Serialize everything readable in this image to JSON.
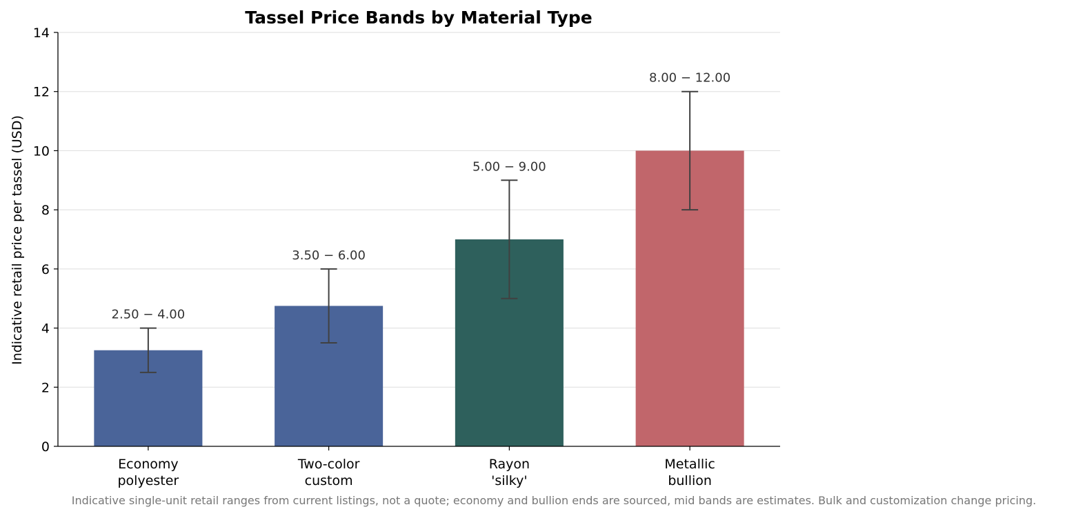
{
  "chart_data": {
    "type": "bar",
    "title": "Tassel Price Bands by Material Type",
    "xlabel": "",
    "ylabel": "Indicative retail price per tassel (USD)",
    "ylim": [
      0,
      14
    ],
    "yticks": [
      0,
      2,
      4,
      6,
      8,
      10,
      12,
      14
    ],
    "grid": true,
    "categories": [
      [
        "Economy",
        "polyester"
      ],
      [
        "Two-color",
        "custom"
      ],
      [
        "Rayon",
        "'silky'"
      ],
      [
        "Metallic",
        "bullion"
      ]
    ],
    "values": [
      3.25,
      4.75,
      7.0,
      10.0
    ],
    "ranges": [
      [
        2.5,
        4.0
      ],
      [
        3.5,
        6.0
      ],
      [
        5.0,
        9.0
      ],
      [
        8.0,
        12.0
      ]
    ],
    "data_labels": [
      "2.50 − 4.00",
      "3.50 − 6.00",
      "5.00 − 9.00",
      "8.00 − 12.00"
    ],
    "colors": [
      "#4a6499",
      "#4a6499",
      "#2e605c",
      "#c1666b"
    ],
    "footnote": "Indicative single-unit retail ranges from current listings, not a quote; economy and bullion ends are sourced, mid bands are estimates. Bulk and customization change pricing."
  }
}
